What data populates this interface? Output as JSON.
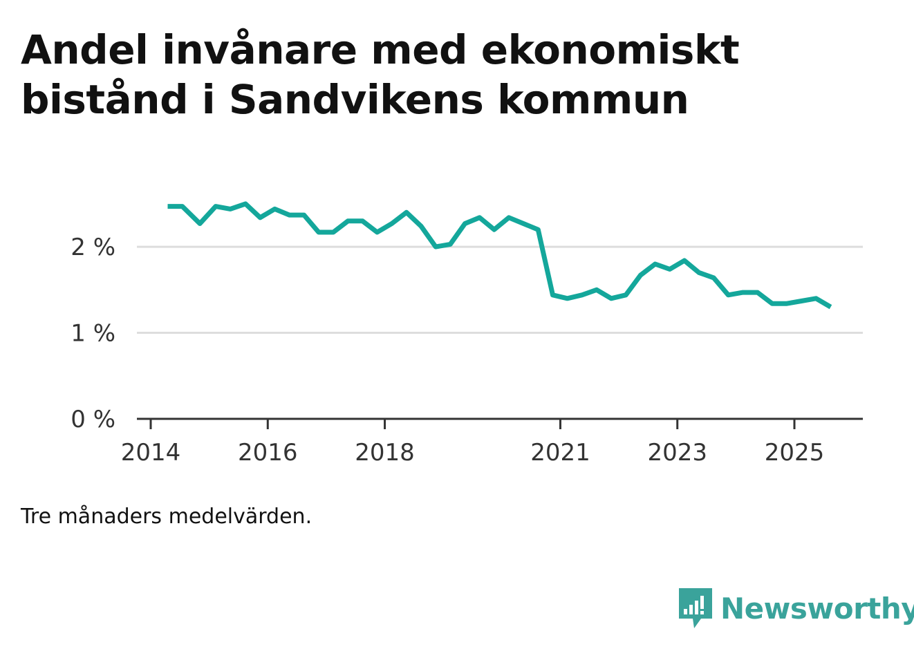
{
  "header": {
    "title_line1": "Andel invånare med ekonomiskt",
    "title_line2": "bistånd i Sandvikens kommun"
  },
  "footer": {
    "note": "Tre månaders medelvärden.",
    "brand": "Newsworthy",
    "brand_icon": "bar-chart-speech-bubble-icon"
  },
  "colors": {
    "line": "#14a79b",
    "grid": "#dddddd",
    "axis": "#333333",
    "brand": "#3aa39b"
  },
  "chart_data": {
    "type": "line",
    "title": "Andel invånare med ekonomiskt bistånd i Sandvikens kommun",
    "xlabel": "",
    "ylabel": "",
    "ylim": [
      0,
      2.7
    ],
    "y_ticks": [
      {
        "value": 0,
        "label": "0 %"
      },
      {
        "value": 1,
        "label": "1 %"
      },
      {
        "value": 2,
        "label": "2 %"
      }
    ],
    "x_ticks": [
      {
        "value": 2014,
        "label": "2014"
      },
      {
        "value": 2016,
        "label": "2016"
      },
      {
        "value": 2018,
        "label": "2018"
      },
      {
        "value": 2021,
        "label": "2021"
      },
      {
        "value": 2023,
        "label": "2023"
      },
      {
        "value": 2025,
        "label": "2025"
      }
    ],
    "xlim": [
      2013.8,
      2026.2
    ],
    "series": [
      {
        "name": "Andel invånare med ekonomiskt bistånd",
        "x": [
          2014.29,
          2014.54,
          2014.84,
          2015.11,
          2015.36,
          2015.62,
          2015.87,
          2016.12,
          2016.37,
          2016.62,
          2016.87,
          2017.12,
          2017.37,
          2017.62,
          2017.87,
          2018.12,
          2018.37,
          2018.62,
          2018.87,
          2019.12,
          2019.37,
          2019.62,
          2019.87,
          2020.12,
          2020.37,
          2020.62,
          2020.87,
          2021.12,
          2021.37,
          2021.62,
          2021.87,
          2022.12,
          2022.37,
          2022.62,
          2022.87,
          2023.12,
          2023.37,
          2023.62,
          2023.87,
          2024.12,
          2024.37,
          2024.62,
          2024.87,
          2025.12,
          2025.37,
          2025.62
        ],
        "values": [
          2.47,
          2.47,
          2.27,
          2.47,
          2.44,
          2.5,
          2.34,
          2.44,
          2.37,
          2.37,
          2.17,
          2.17,
          2.3,
          2.3,
          2.17,
          2.27,
          2.4,
          2.24,
          2.0,
          2.03,
          2.27,
          2.34,
          2.2,
          2.34,
          2.27,
          2.2,
          1.44,
          1.4,
          1.44,
          1.5,
          1.4,
          1.44,
          1.67,
          1.8,
          1.74,
          1.84,
          1.7,
          1.64,
          1.44,
          1.47,
          1.47,
          1.34,
          1.34,
          1.37,
          1.4,
          1.3
        ]
      }
    ]
  }
}
